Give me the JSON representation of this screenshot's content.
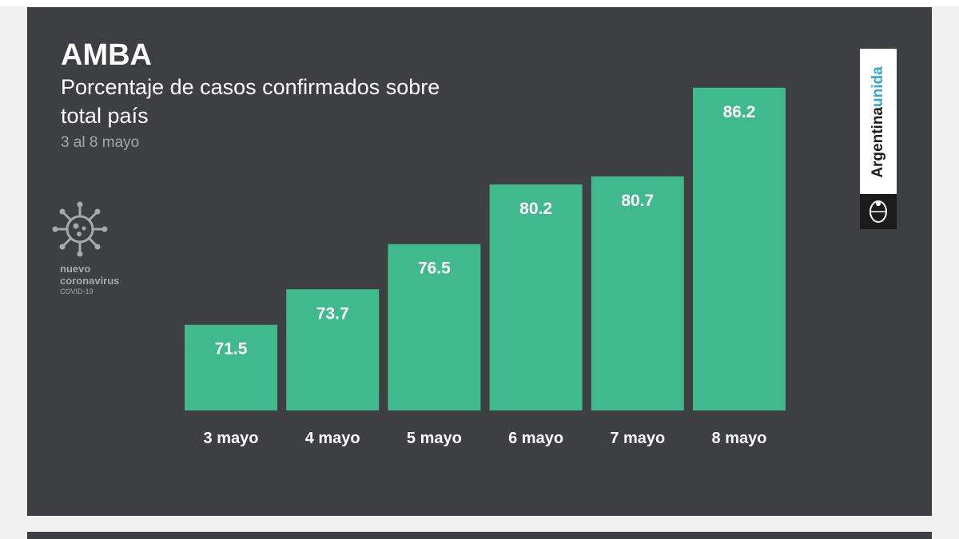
{
  "header": {
    "title": "AMBA",
    "subtitle": "Porcentaje de casos confirmados sobre total país",
    "date_range": "3 al 8 mayo"
  },
  "badge": {
    "line1": "nuevo",
    "line2": "coronavirus",
    "line3": "COVID-19",
    "icon": "virus-icon"
  },
  "brand": {
    "word1": "Argentina",
    "word2": "unida",
    "accent_color": "#2fa7d9",
    "seal_icon": "national-seal-icon"
  },
  "colors": {
    "background": "#3e3f43",
    "bar": "#40ba8c"
  },
  "chart_data": {
    "type": "bar",
    "title": "Porcentaje de casos confirmados sobre total país",
    "xlabel": "",
    "ylabel": "",
    "categories": [
      "3 mayo",
      "4 mayo",
      "5 mayo",
      "6 mayo",
      "7 mayo",
      "8 mayo"
    ],
    "values": [
      71.5,
      73.7,
      76.5,
      80.2,
      80.7,
      86.2
    ],
    "data_labels": true,
    "grid": false,
    "legend": "none"
  }
}
